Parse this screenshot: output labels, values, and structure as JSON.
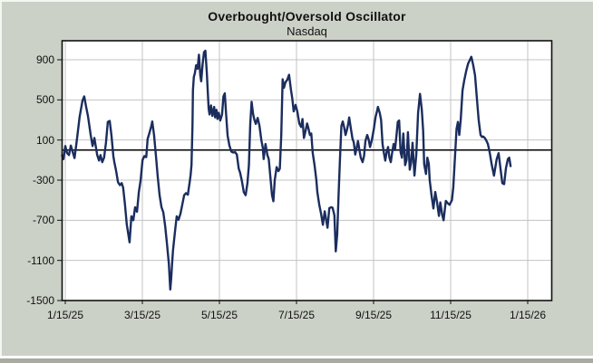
{
  "window": {
    "background_color": "#ccd1c7"
  },
  "chart": {
    "title": "Overbought/Oversold Oscillator",
    "subtitle": "Nasdaq"
  },
  "chart_data": {
    "type": "line",
    "title": "Overbought/Oversold Oscillator",
    "subtitle": "Nasdaq",
    "legend": "none",
    "grid": true,
    "grid_color": "#c3c3c3",
    "zero_line": 0,
    "zero_line_color": "#000000",
    "plot_background": "#ffffff",
    "line_color": "#1b2d5e",
    "line_width": 2.4,
    "ylim": [
      -1500,
      1000
    ],
    "y_tick_values": [
      900,
      500,
      100,
      -300,
      -700,
      -1100,
      -1500
    ],
    "y_tick_labels": [
      "900",
      "500",
      "100",
      "-300",
      "-700",
      "-1100",
      "-1500"
    ],
    "x_tick_labels": [
      "1/15/25",
      "3/15/25",
      "5/15/25",
      "7/15/25",
      "9/15/25",
      "11/15/25",
      "1/15/26"
    ],
    "x_unit": "fraction of x-axis span: 0 = 1/15/25 tick, 1 = 1/15/26 tick",
    "points": [
      [
        -0.007,
        -55
      ],
      [
        -0.004,
        -90
      ],
      [
        0.0,
        40
      ],
      [
        0.004,
        -30
      ],
      [
        0.008,
        -50
      ],
      [
        0.012,
        45
      ],
      [
        0.016,
        -20
      ],
      [
        0.02,
        -80
      ],
      [
        0.024,
        60
      ],
      [
        0.026,
        140
      ],
      [
        0.031,
        330
      ],
      [
        0.037,
        490
      ],
      [
        0.041,
        535
      ],
      [
        0.045,
        430
      ],
      [
        0.049,
        340
      ],
      [
        0.055,
        150
      ],
      [
        0.059,
        40
      ],
      [
        0.063,
        120
      ],
      [
        0.069,
        -50
      ],
      [
        0.073,
        -105
      ],
      [
        0.076,
        -50
      ],
      [
        0.08,
        -120
      ],
      [
        0.084,
        -75
      ],
      [
        0.088,
        75
      ],
      [
        0.092,
        280
      ],
      [
        0.096,
        290
      ],
      [
        0.1,
        140
      ],
      [
        0.104,
        -60
      ],
      [
        0.106,
        -120
      ],
      [
        0.11,
        -210
      ],
      [
        0.114,
        -320
      ],
      [
        0.118,
        -350
      ],
      [
        0.122,
        -330
      ],
      [
        0.125,
        -375
      ],
      [
        0.129,
        -540
      ],
      [
        0.133,
        -740
      ],
      [
        0.139,
        -920
      ],
      [
        0.143,
        -660
      ],
      [
        0.147,
        -700
      ],
      [
        0.151,
        -570
      ],
      [
        0.155,
        -615
      ],
      [
        0.159,
        -420
      ],
      [
        0.163,
        -300
      ],
      [
        0.167,
        -100
      ],
      [
        0.171,
        -60
      ],
      [
        0.175,
        -70
      ],
      [
        0.178,
        110
      ],
      [
        0.182,
        170
      ],
      [
        0.186,
        240
      ],
      [
        0.188,
        285
      ],
      [
        0.192,
        150
      ],
      [
        0.196,
        -60
      ],
      [
        0.2,
        -270
      ],
      [
        0.204,
        -450
      ],
      [
        0.208,
        -570
      ],
      [
        0.212,
        -620
      ],
      [
        0.216,
        -760
      ],
      [
        0.22,
        -940
      ],
      [
        0.224,
        -1130
      ],
      [
        0.227,
        -1390
      ],
      [
        0.229,
        -1280
      ],
      [
        0.231,
        -1130
      ],
      [
        0.233,
        -1000
      ],
      [
        0.237,
        -820
      ],
      [
        0.241,
        -660
      ],
      [
        0.245,
        -695
      ],
      [
        0.249,
        -635
      ],
      [
        0.253,
        -545
      ],
      [
        0.257,
        -450
      ],
      [
        0.261,
        -430
      ],
      [
        0.265,
        -445
      ],
      [
        0.267,
        -380
      ],
      [
        0.269,
        -320
      ],
      [
        0.271,
        -250
      ],
      [
        0.273,
        -150
      ],
      [
        0.275,
        250
      ],
      [
        0.276,
        600
      ],
      [
        0.278,
        730
      ],
      [
        0.28,
        760
      ],
      [
        0.283,
        845
      ],
      [
        0.286,
        810
      ],
      [
        0.289,
        950
      ],
      [
        0.292,
        745
      ],
      [
        0.294,
        685
      ],
      [
        0.297,
        860
      ],
      [
        0.3,
        975
      ],
      [
        0.303,
        990
      ],
      [
        0.306,
        770
      ],
      [
        0.31,
        415
      ],
      [
        0.312,
        355
      ],
      [
        0.315,
        445
      ],
      [
        0.318,
        340
      ],
      [
        0.322,
        430
      ],
      [
        0.324,
        325
      ],
      [
        0.327,
        400
      ],
      [
        0.329,
        310
      ],
      [
        0.332,
        370
      ],
      [
        0.335,
        295
      ],
      [
        0.339,
        355
      ],
      [
        0.342,
        535
      ],
      [
        0.345,
        565
      ],
      [
        0.348,
        340
      ],
      [
        0.351,
        145
      ],
      [
        0.355,
        45
      ],
      [
        0.359,
        -15
      ],
      [
        0.363,
        -25
      ],
      [
        0.367,
        -20
      ],
      [
        0.371,
        -45
      ],
      [
        0.375,
        -185
      ],
      [
        0.378,
        -225
      ],
      [
        0.382,
        -310
      ],
      [
        0.386,
        -420
      ],
      [
        0.39,
        -450
      ],
      [
        0.394,
        -330
      ],
      [
        0.397,
        -150
      ],
      [
        0.4,
        260
      ],
      [
        0.403,
        480
      ],
      [
        0.406,
        360
      ],
      [
        0.409,
        300
      ],
      [
        0.412,
        260
      ],
      [
        0.416,
        320
      ],
      [
        0.42,
        240
      ],
      [
        0.424,
        100
      ],
      [
        0.427,
        25
      ],
      [
        0.429,
        -90
      ],
      [
        0.433,
        60
      ],
      [
        0.437,
        -50
      ],
      [
        0.44,
        -90
      ],
      [
        0.443,
        -240
      ],
      [
        0.447,
        -450
      ],
      [
        0.45,
        -510
      ],
      [
        0.453,
        -300
      ],
      [
        0.457,
        -170
      ],
      [
        0.461,
        -210
      ],
      [
        0.464,
        -185
      ],
      [
        0.467,
        150
      ],
      [
        0.47,
        705
      ],
      [
        0.473,
        620
      ],
      [
        0.476,
        675
      ],
      [
        0.48,
        700
      ],
      [
        0.484,
        750
      ],
      [
        0.488,
        600
      ],
      [
        0.491,
        510
      ],
      [
        0.494,
        385
      ],
      [
        0.498,
        450
      ],
      [
        0.502,
        380
      ],
      [
        0.506,
        265
      ],
      [
        0.51,
        230
      ],
      [
        0.513,
        310
      ],
      [
        0.516,
        120
      ],
      [
        0.52,
        200
      ],
      [
        0.523,
        265
      ],
      [
        0.525,
        230
      ],
      [
        0.529,
        150
      ],
      [
        0.532,
        165
      ],
      [
        0.535,
        -30
      ],
      [
        0.539,
        -150
      ],
      [
        0.543,
        -300
      ],
      [
        0.545,
        -420
      ],
      [
        0.549,
        -540
      ],
      [
        0.553,
        -630
      ],
      [
        0.557,
        -745
      ],
      [
        0.561,
        -610
      ],
      [
        0.567,
        -775
      ],
      [
        0.571,
        -580
      ],
      [
        0.575,
        -570
      ],
      [
        0.578,
        -575
      ],
      [
        0.582,
        -650
      ],
      [
        0.585,
        -1010
      ],
      [
        0.588,
        -840
      ],
      [
        0.591,
        -450
      ],
      [
        0.594,
        -100
      ],
      [
        0.597,
        240
      ],
      [
        0.6,
        285
      ],
      [
        0.603,
        230
      ],
      [
        0.606,
        150
      ],
      [
        0.609,
        200
      ],
      [
        0.612,
        265
      ],
      [
        0.614,
        325
      ],
      [
        0.618,
        200
      ],
      [
        0.621,
        115
      ],
      [
        0.624,
        75
      ],
      [
        0.627,
        -45
      ],
      [
        0.63,
        20
      ],
      [
        0.633,
        90
      ],
      [
        0.636,
        0
      ],
      [
        0.639,
        -75
      ],
      [
        0.643,
        -120
      ],
      [
        0.646,
        -60
      ],
      [
        0.649,
        90
      ],
      [
        0.653,
        150
      ],
      [
        0.656,
        105
      ],
      [
        0.659,
        30
      ],
      [
        0.663,
        100
      ],
      [
        0.667,
        205
      ],
      [
        0.671,
        330
      ],
      [
        0.674,
        385
      ],
      [
        0.676,
        430
      ],
      [
        0.68,
        370
      ],
      [
        0.683,
        300
      ],
      [
        0.686,
        60
      ],
      [
        0.689,
        -30
      ],
      [
        0.692,
        -105
      ],
      [
        0.695,
        -20
      ],
      [
        0.698,
        30
      ],
      [
        0.701,
        -75
      ],
      [
        0.704,
        -120
      ],
      [
        0.707,
        -20
      ],
      [
        0.71,
        60
      ],
      [
        0.713,
        0
      ],
      [
        0.716,
        140
      ],
      [
        0.719,
        280
      ],
      [
        0.722,
        295
      ],
      [
        0.725,
        -20
      ],
      [
        0.728,
        -76
      ],
      [
        0.731,
        165
      ],
      [
        0.735,
        -150
      ],
      [
        0.738,
        -100
      ],
      [
        0.741,
        177
      ],
      [
        0.745,
        -195
      ],
      [
        0.748,
        -120
      ],
      [
        0.751,
        73
      ],
      [
        0.755,
        -254
      ],
      [
        0.759,
        -46
      ],
      [
        0.763,
        370
      ],
      [
        0.767,
        560
      ],
      [
        0.771,
        400
      ],
      [
        0.774,
        190
      ],
      [
        0.776,
        -140
      ],
      [
        0.78,
        -239
      ],
      [
        0.783,
        -76
      ],
      [
        0.786,
        -136
      ],
      [
        0.788,
        -300
      ],
      [
        0.792,
        -450
      ],
      [
        0.796,
        -582
      ],
      [
        0.8,
        -418
      ],
      [
        0.804,
        -520
      ],
      [
        0.808,
        -656
      ],
      [
        0.811,
        -522
      ],
      [
        0.815,
        -641
      ],
      [
        0.818,
        -700
      ],
      [
        0.823,
        -507
      ],
      [
        0.827,
        -530
      ],
      [
        0.831,
        -545
      ],
      [
        0.836,
        -500
      ],
      [
        0.839,
        -373
      ],
      [
        0.843,
        -50
      ],
      [
        0.846,
        210
      ],
      [
        0.849,
        280
      ],
      [
        0.852,
        150
      ],
      [
        0.855,
        300
      ],
      [
        0.859,
        594
      ],
      [
        0.863,
        700
      ],
      [
        0.867,
        790
      ],
      [
        0.871,
        860
      ],
      [
        0.875,
        900
      ],
      [
        0.878,
        930
      ],
      [
        0.882,
        850
      ],
      [
        0.886,
        745
      ],
      [
        0.89,
        520
      ],
      [
        0.894,
        300
      ],
      [
        0.898,
        150
      ],
      [
        0.901,
        130
      ],
      [
        0.904,
        135
      ],
      [
        0.907,
        120
      ],
      [
        0.91,
        100
      ],
      [
        0.914,
        60
      ],
      [
        0.918,
        -30
      ],
      [
        0.922,
        -140
      ],
      [
        0.927,
        -255
      ],
      [
        0.933,
        -90
      ],
      [
        0.937,
        -31
      ],
      [
        0.941,
        -180
      ],
      [
        0.945,
        -330
      ],
      [
        0.949,
        -340
      ],
      [
        0.953,
        -180
      ],
      [
        0.957,
        -90
      ],
      [
        0.96,
        -76
      ],
      [
        0.963,
        -160
      ]
    ]
  }
}
